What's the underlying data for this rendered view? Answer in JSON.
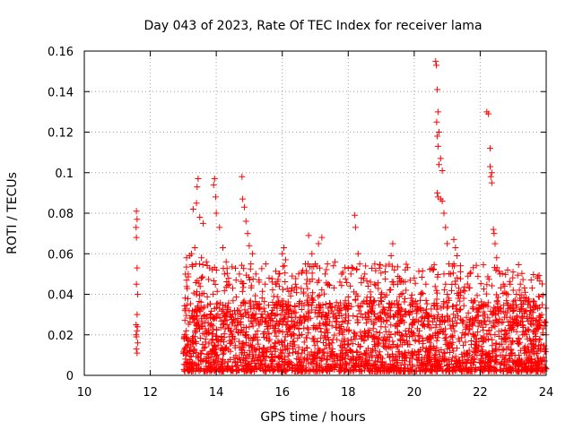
{
  "chart_data": {
    "type": "scatter",
    "title": "Day 043 of 2023, Rate Of TEC Index for receiver lama",
    "xlabel": "GPS time / hours",
    "ylabel": "ROTI / TECUs",
    "xlim": [
      10,
      24
    ],
    "ylim": [
      0,
      0.16
    ],
    "xticks": [
      10,
      12,
      14,
      16,
      18,
      20,
      22,
      24
    ],
    "yticks": [
      0,
      0.02,
      0.04,
      0.06,
      0.08,
      0.1,
      0.12,
      0.14,
      0.16
    ],
    "xtick_labels": [
      "10",
      "12",
      "14",
      "16",
      "18",
      "20",
      "22",
      "24"
    ],
    "ytick_labels": [
      "0",
      "0.02",
      "0.04",
      "0.06",
      "0.08",
      "0.1",
      "0.12",
      "0.14",
      "0.16"
    ],
    "grid": true,
    "marker": "+",
    "series_color": "#ff0000",
    "series": [
      {
        "points": [
          [
            11.58,
            0.081
          ],
          [
            11.6,
            0.077
          ],
          [
            11.57,
            0.073
          ],
          [
            11.58,
            0.068
          ],
          [
            11.6,
            0.053
          ],
          [
            11.58,
            0.045
          ],
          [
            11.62,
            0.04
          ],
          [
            11.6,
            0.03
          ],
          [
            11.57,
            0.025
          ],
          [
            11.6,
            0.022
          ],
          [
            11.58,
            0.019
          ],
          [
            11.62,
            0.016
          ],
          [
            11.58,
            0.013
          ],
          [
            11.6,
            0.011
          ],
          [
            11.57,
            0.02
          ],
          [
            11.61,
            0.024
          ],
          [
            13.1,
            0.058
          ],
          [
            13.2,
            0.059
          ],
          [
            13.15,
            0.05
          ],
          [
            13.3,
            0.082
          ],
          [
            13.4,
            0.085
          ],
          [
            13.45,
            0.097
          ],
          [
            13.42,
            0.093
          ],
          [
            13.5,
            0.078
          ],
          [
            13.6,
            0.075
          ],
          [
            13.35,
            0.063
          ],
          [
            13.25,
            0.06
          ],
          [
            13.55,
            0.058
          ],
          [
            13.7,
            0.056
          ],
          [
            13.8,
            0.053
          ],
          [
            13.95,
            0.097
          ],
          [
            13.92,
            0.094
          ],
          [
            13.98,
            0.088
          ],
          [
            14.0,
            0.08
          ],
          [
            14.1,
            0.073
          ],
          [
            14.2,
            0.063
          ],
          [
            14.3,
            0.056
          ],
          [
            14.25,
            0.05
          ],
          [
            14.4,
            0.045
          ],
          [
            14.5,
            0.043
          ],
          [
            14.6,
            0.047
          ],
          [
            14.7,
            0.05
          ],
          [
            14.78,
            0.098
          ],
          [
            14.8,
            0.087
          ],
          [
            14.85,
            0.083
          ],
          [
            14.9,
            0.076
          ],
          [
            14.95,
            0.07
          ],
          [
            15.0,
            0.064
          ],
          [
            15.1,
            0.06
          ],
          [
            15.05,
            0.055
          ],
          [
            15.2,
            0.05
          ],
          [
            15.3,
            0.046
          ],
          [
            15.5,
            0.055
          ],
          [
            15.6,
            0.048
          ],
          [
            15.7,
            0.046
          ],
          [
            15.8,
            0.045
          ],
          [
            15.9,
            0.05
          ],
          [
            16.0,
            0.06
          ],
          [
            16.05,
            0.063
          ],
          [
            16.1,
            0.057
          ],
          [
            16.3,
            0.049
          ],
          [
            16.4,
            0.045
          ],
          [
            16.7,
            0.055
          ],
          [
            16.8,
            0.069
          ],
          [
            16.9,
            0.06
          ],
          [
            17.0,
            0.055
          ],
          [
            17.1,
            0.065
          ],
          [
            17.2,
            0.068
          ],
          [
            17.3,
            0.05
          ],
          [
            17.4,
            0.045
          ],
          [
            17.6,
            0.056
          ],
          [
            17.8,
            0.05
          ],
          [
            18.2,
            0.079
          ],
          [
            18.22,
            0.073
          ],
          [
            18.3,
            0.06
          ],
          [
            18.35,
            0.055
          ],
          [
            18.4,
            0.048
          ],
          [
            18.5,
            0.05
          ],
          [
            18.6,
            0.044
          ],
          [
            18.8,
            0.045
          ],
          [
            19.0,
            0.04
          ],
          [
            19.35,
            0.065
          ],
          [
            19.3,
            0.059
          ],
          [
            19.4,
            0.052
          ],
          [
            19.5,
            0.045
          ],
          [
            19.6,
            0.04
          ],
          [
            19.75,
            0.042
          ],
          [
            19.9,
            0.038
          ],
          [
            20.0,
            0.048
          ],
          [
            20.2,
            0.04
          ],
          [
            20.4,
            0.03
          ],
          [
            20.65,
            0.155
          ],
          [
            20.67,
            0.153
          ],
          [
            20.7,
            0.141
          ],
          [
            20.72,
            0.13
          ],
          [
            20.68,
            0.125
          ],
          [
            20.75,
            0.12
          ],
          [
            20.7,
            0.118
          ],
          [
            20.72,
            0.113
          ],
          [
            20.8,
            0.107
          ],
          [
            20.75,
            0.104
          ],
          [
            20.85,
            0.101
          ],
          [
            20.7,
            0.09
          ],
          [
            20.72,
            0.088
          ],
          [
            20.8,
            0.087
          ],
          [
            20.85,
            0.086
          ],
          [
            20.9,
            0.08
          ],
          [
            20.95,
            0.073
          ],
          [
            21.0,
            0.065
          ],
          [
            21.05,
            0.055
          ],
          [
            20.9,
            0.05
          ],
          [
            20.95,
            0.045
          ],
          [
            21.0,
            0.04
          ],
          [
            21.2,
            0.067
          ],
          [
            21.25,
            0.063
          ],
          [
            21.3,
            0.059
          ],
          [
            21.2,
            0.055
          ],
          [
            21.1,
            0.05
          ],
          [
            21.25,
            0.045
          ],
          [
            21.35,
            0.043
          ],
          [
            21.4,
            0.041
          ],
          [
            21.5,
            0.038
          ],
          [
            22.2,
            0.13
          ],
          [
            22.25,
            0.129
          ],
          [
            22.3,
            0.112
          ],
          [
            22.3,
            0.103
          ],
          [
            22.35,
            0.1
          ],
          [
            22.32,
            0.098
          ],
          [
            22.35,
            0.095
          ],
          [
            22.4,
            0.072
          ],
          [
            22.42,
            0.07
          ],
          [
            22.45,
            0.065
          ],
          [
            22.5,
            0.058
          ],
          [
            22.6,
            0.05
          ],
          [
            22.7,
            0.045
          ],
          [
            23.0,
            0.042
          ],
          [
            23.1,
            0.04
          ],
          [
            23.2,
            0.038
          ],
          [
            23.3,
            0.035
          ],
          [
            23.4,
            0.032
          ],
          [
            23.5,
            0.03
          ],
          [
            23.6,
            0.028
          ],
          [
            23.8,
            0.025
          ],
          [
            23.9,
            0.023
          ],
          [
            24.0,
            0.02
          ]
        ]
      }
    ],
    "dense_band": {
      "x_range": [
        13.0,
        24.0
      ],
      "y_floor": 0.002,
      "y_typical_max": 0.035,
      "description": "dense cloud of points throughout the observation window"
    }
  }
}
